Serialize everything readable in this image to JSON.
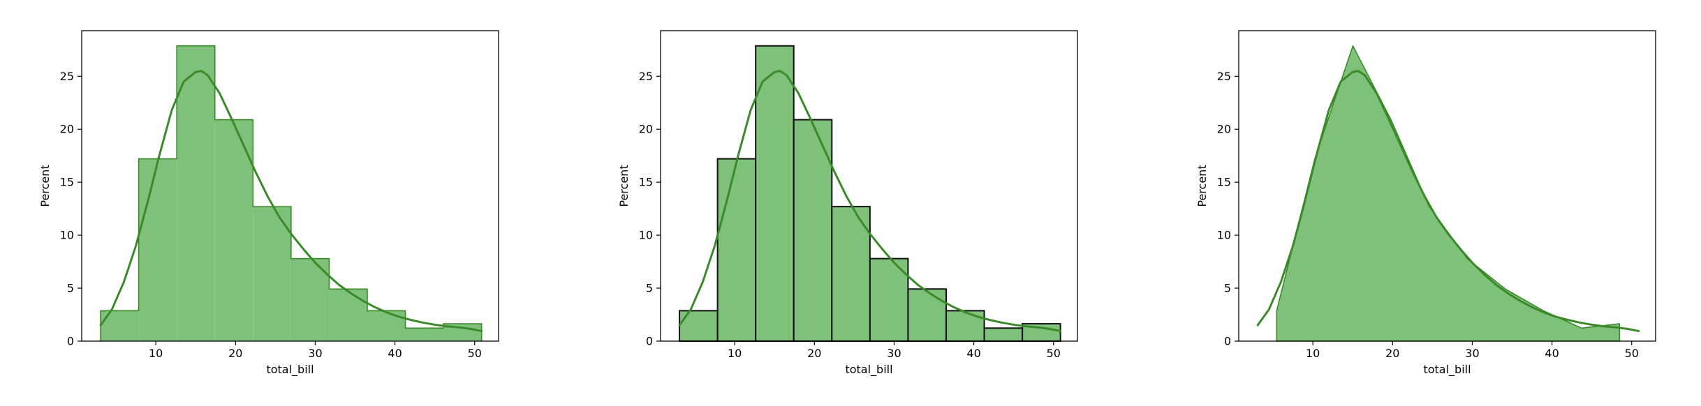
{
  "colors": {
    "fill": "#7fc07b",
    "line": "#3a8a2a",
    "edge_dark": "#111111",
    "axis": "#000000"
  },
  "chart_data": [
    {
      "type": "histogram-step",
      "xlabel": "total_bill",
      "ylabel": "Percent",
      "xlim": [
        0.7,
        53.0
      ],
      "ylim": [
        0,
        29.3
      ],
      "xticks": [
        10,
        20,
        30,
        40,
        50
      ],
      "yticks": [
        0,
        5,
        10,
        15,
        20,
        25
      ],
      "grid": false,
      "bins": [
        3.07,
        7.85,
        12.63,
        17.41,
        22.19,
        26.97,
        31.75,
        36.53,
        41.31,
        46.09,
        50.87
      ],
      "values": [
        2.87,
        17.21,
        27.87,
        20.9,
        12.7,
        7.79,
        4.92,
        2.87,
        1.23,
        1.64
      ],
      "kde": {
        "x": [
          3.07,
          4.5,
          6,
          7.5,
          9,
          10.5,
          12,
          13.5,
          15,
          15.7,
          16.5,
          18,
          19.5,
          21,
          22.5,
          24,
          25.5,
          27,
          28.5,
          30,
          31.5,
          33,
          34.5,
          36,
          37.5,
          39,
          40.5,
          42,
          43.5,
          45,
          46.5,
          48,
          49.5,
          50.87
        ],
        "y": [
          1.5,
          3.0,
          5.6,
          9.0,
          13.2,
          17.7,
          21.8,
          24.5,
          25.4,
          25.5,
          25.1,
          23.4,
          21.0,
          18.5,
          16.0,
          13.7,
          11.7,
          10.1,
          8.7,
          7.4,
          6.3,
          5.3,
          4.5,
          3.8,
          3.2,
          2.7,
          2.3,
          2.0,
          1.75,
          1.55,
          1.4,
          1.3,
          1.15,
          0.95
        ]
      }
    },
    {
      "type": "histogram-bars",
      "xlabel": "total_bill",
      "ylabel": "Percent",
      "xlim": [
        0.7,
        53.0
      ],
      "ylim": [
        0,
        29.3
      ],
      "xticks": [
        10,
        20,
        30,
        40,
        50
      ],
      "yticks": [
        0,
        5,
        10,
        15,
        20,
        25
      ],
      "grid": false,
      "bins": [
        3.07,
        7.85,
        12.63,
        17.41,
        22.19,
        26.97,
        31.75,
        36.53,
        41.31,
        46.09,
        50.87
      ],
      "values": [
        2.87,
        17.21,
        27.87,
        20.9,
        12.7,
        7.79,
        4.92,
        2.87,
        1.23,
        1.64
      ],
      "kde": {
        "x": [
          3.07,
          4.5,
          6,
          7.5,
          9,
          10.5,
          12,
          13.5,
          15,
          15.7,
          16.5,
          18,
          19.5,
          21,
          22.5,
          24,
          25.5,
          27,
          28.5,
          30,
          31.5,
          33,
          34.5,
          36,
          37.5,
          39,
          40.5,
          42,
          43.5,
          45,
          46.5,
          48,
          49.5,
          50.87
        ],
        "y": [
          1.5,
          3.0,
          5.6,
          9.0,
          13.2,
          17.7,
          21.8,
          24.5,
          25.4,
          25.5,
          25.1,
          23.4,
          21.0,
          18.5,
          16.0,
          13.7,
          11.7,
          10.1,
          8.7,
          7.4,
          6.3,
          5.3,
          4.5,
          3.8,
          3.2,
          2.7,
          2.3,
          2.0,
          1.75,
          1.55,
          1.4,
          1.3,
          1.15,
          0.95
        ]
      }
    },
    {
      "type": "histogram-poly",
      "xlabel": "total_bill",
      "ylabel": "Percent",
      "xlim": [
        0.7,
        53.0
      ],
      "ylim": [
        0,
        29.3
      ],
      "xticks": [
        10,
        20,
        30,
        40,
        50
      ],
      "yticks": [
        0,
        5,
        10,
        15,
        20,
        25
      ],
      "grid": false,
      "poly": {
        "x": [
          5.46,
          10.24,
          15.02,
          19.8,
          24.58,
          29.36,
          34.14,
          38.92,
          43.7,
          48.48
        ],
        "y": [
          2.87,
          17.21,
          27.87,
          20.9,
          12.7,
          7.79,
          4.92,
          2.87,
          1.23,
          1.64
        ]
      },
      "kde": {
        "x": [
          3.07,
          4.5,
          6,
          7.5,
          9,
          10.5,
          12,
          13.5,
          15,
          15.7,
          16.5,
          18,
          19.5,
          21,
          22.5,
          24,
          25.5,
          27,
          28.5,
          30,
          31.5,
          33,
          34.5,
          36,
          37.5,
          39,
          40.5,
          42,
          43.5,
          45,
          46.5,
          48,
          49.5,
          50.87
        ],
        "y": [
          1.5,
          3.0,
          5.6,
          9.0,
          13.2,
          17.7,
          21.8,
          24.5,
          25.4,
          25.5,
          25.1,
          23.4,
          21.0,
          18.5,
          16.0,
          13.7,
          11.7,
          10.1,
          8.7,
          7.4,
          6.3,
          5.3,
          4.5,
          3.8,
          3.2,
          2.7,
          2.3,
          2.0,
          1.75,
          1.55,
          1.4,
          1.3,
          1.15,
          0.95
        ]
      }
    }
  ]
}
